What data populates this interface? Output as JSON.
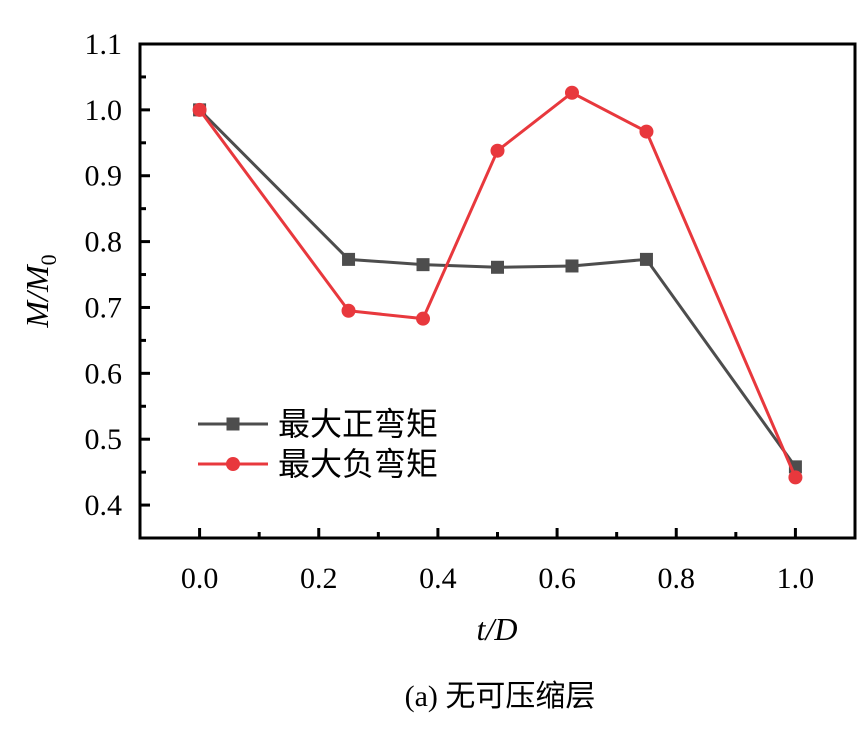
{
  "chart_data": {
    "type": "line",
    "title": "",
    "caption": "(a) 无可压缩层",
    "xlabel": "t/D",
    "ylabel": "M/M0",
    "xlim": [
      -0.1,
      1.1
    ],
    "ylim": [
      0.35,
      1.1
    ],
    "xticks": [
      "0.0",
      "0.2",
      "0.4",
      "0.6",
      "0.8",
      "1.0"
    ],
    "yticks": [
      "0.4",
      "0.5",
      "0.6",
      "0.7",
      "0.8",
      "0.9",
      "1.0",
      "1.1"
    ],
    "grid": false,
    "legend_placement": "lower-left",
    "x": [
      0,
      0.25,
      0.375,
      0.5,
      0.625,
      0.75,
      1.0
    ],
    "series": [
      {
        "name": "最大正弯矩",
        "color": "#4d4d4d",
        "marker": "square",
        "values": [
          1.0,
          0.773,
          0.765,
          0.761,
          0.763,
          0.773,
          0.458
        ]
      },
      {
        "name": "最大负弯矩",
        "color": "#e8383d",
        "marker": "circle",
        "values": [
          1.0,
          0.695,
          0.683,
          0.938,
          1.026,
          0.967,
          0.442
        ]
      }
    ]
  }
}
